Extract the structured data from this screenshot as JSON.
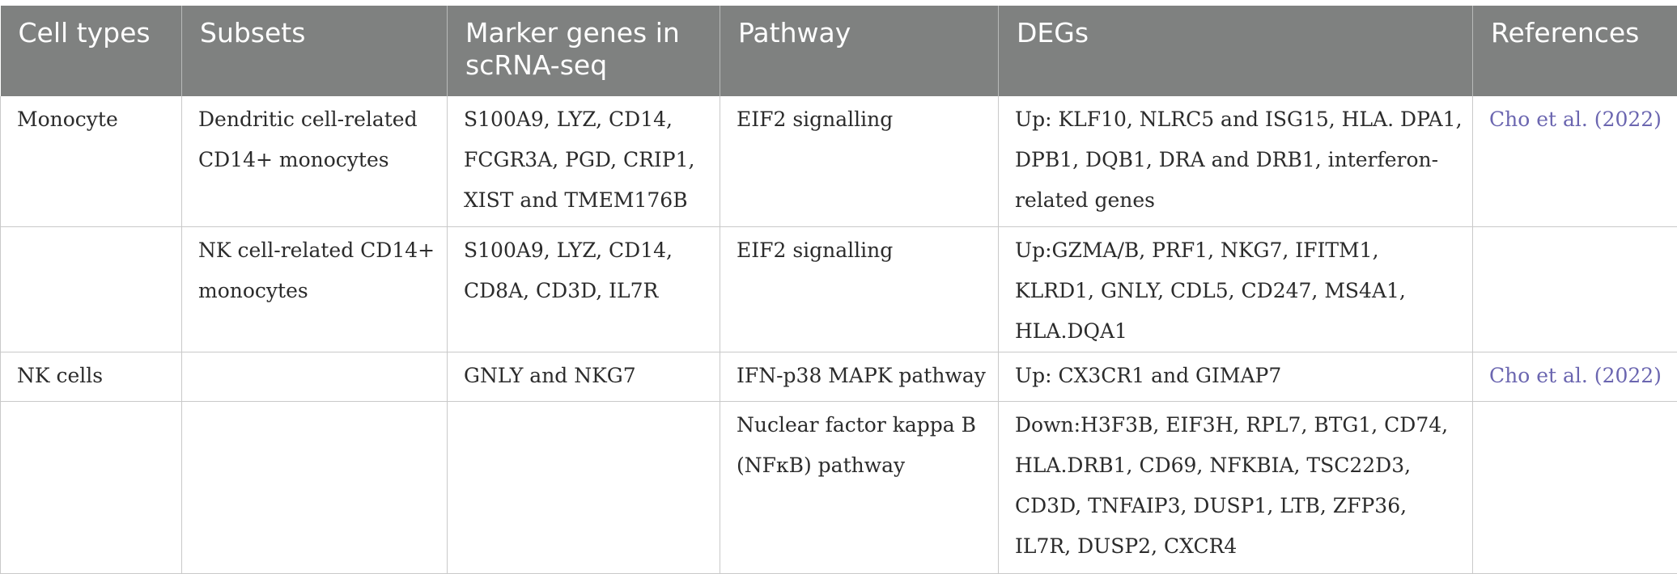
{
  "table": {
    "headers": [
      "Cell types",
      "Subsets",
      "Marker genes in scRNA-seq",
      "Pathway",
      "DEGs",
      "References"
    ],
    "rows": [
      {
        "cell_type": "Monocyte",
        "subset": "Dendritic cell-related CD14+ monocytes",
        "markers": "S100A9, LYZ, CD14, FCGR3A, PGD, CRIP1, XIST and TMEM176B",
        "pathway": "EIF2 signalling",
        "degs": "Up: KLF10, NLRC5 and ISG15, HLA. DPA1, DPB1, DQB1, DRA and DRB1, interferon-related genes",
        "reference": "Cho et al. (2022)"
      },
      {
        "cell_type": "",
        "subset": "NK cell-related CD14+ monocytes",
        "markers": "S100A9, LYZ, CD14, CD8A, CD3D, IL7R",
        "pathway": "EIF2 signalling",
        "degs": "Up:GZMA/B, PRF1, NKG7, IFITM1, KLRD1, GNLY, CDL5, CD247, MS4A1, HLA.DQA1",
        "reference": ""
      },
      {
        "cell_type": "NK cells",
        "subset": "",
        "markers": "GNLY and NKG7",
        "pathway": "IFN-p38 MAPK pathway",
        "degs": "Up: CX3CR1 and GIMAP7",
        "reference": "Cho et al. (2022)"
      },
      {
        "cell_type": "",
        "subset": "",
        "markers": "",
        "pathway": "Nuclear factor kappa B (NFκB) pathway",
        "degs": "Down:H3F3B, EIF3H, RPL7, BTG1, CD74, HLA.DRB1, CD69, NFKBIA, TSC22D3, CD3D, TNFAIP3, DUSP1, LTB, ZFP36, IL7R, DUSP2, CXCR4",
        "reference": ""
      }
    ]
  },
  "colors": {
    "header_bg": "#7f8180",
    "header_text": "#ffffff",
    "link": "#6b66b0",
    "border": "#c9c9c9"
  }
}
